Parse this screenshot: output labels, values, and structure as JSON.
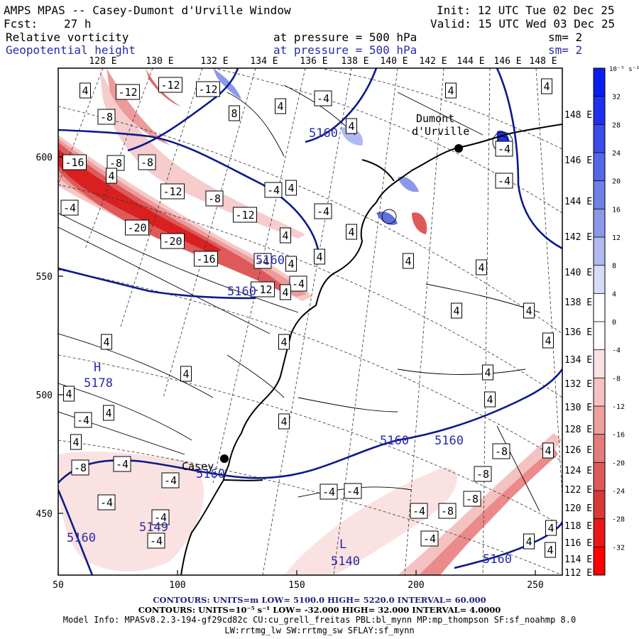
{
  "header": {
    "title": "AMPS MPAS -- Casey-Dumont d'Urville Window",
    "init": "Init: 12 UTC Tue 02 Dec 25",
    "fcst_label": "Fcst:",
    "fcst_value": "27 h",
    "valid": "Valid: 15 UTC Wed 03 Dec 25",
    "field1_name": "Relative vorticity",
    "field1_level": "at pressure =  500 hPa",
    "field1_sm": "sm= 2",
    "field2_name": "Geopotential height",
    "field2_level": "at pressure =  500 hPa",
    "field2_sm": "sm= 2"
  },
  "axes": {
    "bottom_ticks": [
      "50",
      "100",
      "150",
      "200",
      "250"
    ],
    "left_ticks": [
      "600",
      "550",
      "500",
      "450"
    ],
    "top_lon": [
      "128 E",
      "130 E",
      "132 E",
      "134 E",
      "136 E",
      "138 E",
      "140 E",
      "142 E",
      "144 E",
      "146 E",
      "148 E"
    ],
    "right_lon": [
      "148 E",
      "146 E",
      "144 E",
      "142 E",
      "140 E",
      "138 E",
      "136 E",
      "134 E",
      "132 E",
      "130 E",
      "128 E",
      "126 E",
      "124 E",
      "122 E",
      "120 E",
      "118 E",
      "116 E",
      "114 E",
      "112 E"
    ]
  },
  "colorbar": {
    "unit": "10⁻⁵ s⁻¹",
    "levels": [
      "32",
      "28",
      "24",
      "20",
      "16",
      "12",
      "8",
      "4",
      "0",
      "-4",
      "-8",
      "-12",
      "-16",
      "-20",
      "-24",
      "-28",
      "-32"
    ],
    "colors": [
      "#0a1ef0",
      "#1e32ee",
      "#3a4cea",
      "#5566e6",
      "#7080e4",
      "#8c99e8",
      "#b0b9f0",
      "#d6dbf8",
      "#ffffff",
      "#ffffff",
      "#fbe2e2",
      "#f5c2c2",
      "#eea0a0",
      "#e47c7c",
      "#de5a5a",
      "#d83838",
      "#e81818",
      "#ff0000"
    ]
  },
  "map_labels": {
    "stations": [
      {
        "name": "Dumont\nd'Urville"
      },
      {
        "name": "Casey"
      }
    ],
    "pressure_centers": [
      {
        "letter": "H",
        "value": "5178"
      },
      {
        "letter": "L",
        "value": "5140"
      }
    ],
    "height_labels": [
      "5160",
      "5160",
      "5160",
      "5160",
      "5160",
      "5160",
      "5160",
      "5149",
      "5160"
    ],
    "vort_labels": [
      "-12",
      "-12",
      "-8",
      "-12",
      "-16",
      "-8",
      "-8",
      "-12",
      "-12",
      "-8",
      "-20",
      "-20",
      "-16",
      "-12",
      "-4",
      "-4",
      "-4",
      "4",
      "8",
      "4",
      "4",
      "4",
      "4",
      "4",
      "4",
      "4",
      "4",
      "4",
      "4",
      "4",
      "4",
      "4",
      "4",
      "4",
      "4",
      "4",
      "4",
      "4",
      "4",
      "4",
      "4",
      "4",
      "4",
      "-4",
      "-4",
      "-4",
      "-4",
      "-4",
      "-4",
      "-4",
      "-4",
      "-4",
      "-4",
      "-8",
      "-8",
      "-8",
      "-8",
      "-8",
      "-4",
      "-4",
      "-4",
      "4",
      "4",
      "4",
      "4",
      "4",
      "-4",
      "-4",
      "-4"
    ]
  },
  "footer": {
    "contours1": "CONTOURS:  UNITS=m  LOW=  5100.0          HIGH=  5220.0          INTERVAL=   60.000",
    "contours2": "CONTOURS:  UNITS=10⁻⁵ s⁻¹   LOW= -32.000          HIGH=  32.000          INTERVAL=   4.0000",
    "model_info": "Model Info: MPASv8.2.3-194-gf29cd82c CU:cu_grell_freitas PBL:bl_mynn MP:mp_thompson SF:sf_noahmp 8.0",
    "model_info2": "LW:rrtmg_lw SW:rrtmg_sw SFLAY:sf_mynn"
  }
}
